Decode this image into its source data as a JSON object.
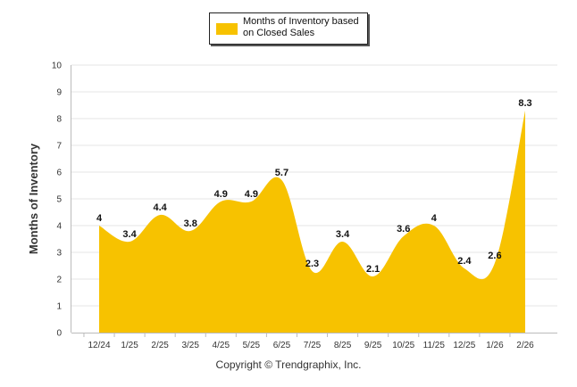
{
  "colors": {
    "series": "#f7c200",
    "grid": "#e6e6e6",
    "axis": "#bbbbbb"
  },
  "chart_data": {
    "type": "area",
    "title": "",
    "xlabel": "",
    "ylabel": "Months of Inventory",
    "ylim": [
      0,
      10
    ],
    "yticks": [
      0,
      1,
      2,
      3,
      4,
      5,
      6,
      7,
      8,
      9,
      10
    ],
    "categories": [
      "12/24",
      "1/25",
      "2/25",
      "3/25",
      "4/25",
      "5/25",
      "6/25",
      "7/25",
      "8/25",
      "9/25",
      "10/25",
      "11/25",
      "12/25",
      "1/26",
      "2/26"
    ],
    "series": [
      {
        "name": "Months of Inventory based on Closed Sales",
        "values": [
          4,
          3.4,
          4.4,
          3.8,
          4.9,
          4.9,
          5.7,
          2.3,
          3.4,
          2.1,
          3.6,
          4,
          2.4,
          2.6,
          8.3
        ]
      }
    ],
    "legend": {
      "line1": "Months of Inventory based",
      "line2": "on Closed Sales",
      "position": "top-center"
    },
    "grid": true
  },
  "footer": {
    "copyright": "Copyright © Trendgraphix, Inc."
  }
}
